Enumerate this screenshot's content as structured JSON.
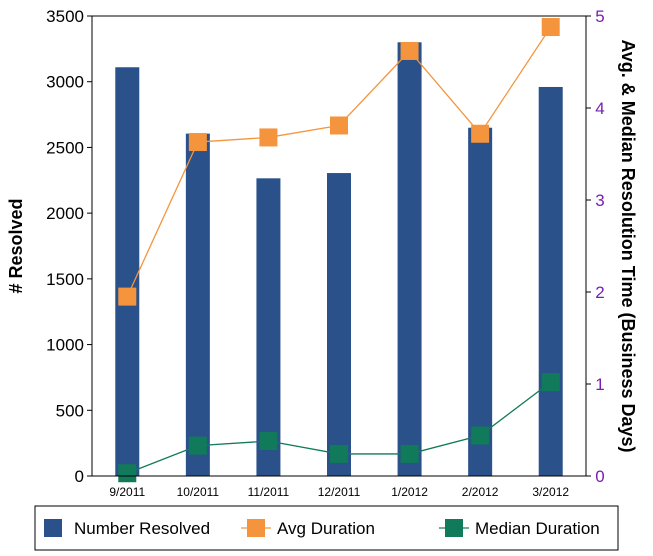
{
  "chart_data": {
    "type": "bar",
    "categories": [
      "9/2011",
      "10/2011",
      "11/2011",
      "12/2011",
      "1/2012",
      "2/2012",
      "3/2012"
    ],
    "series": [
      {
        "name": "Number Resolved",
        "type": "bar",
        "axis": "left",
        "color": "#2a5189",
        "values": [
          3110,
          2605,
          2265,
          2305,
          3300,
          2650,
          2960
        ]
      },
      {
        "name": "Avg Duration",
        "type": "line",
        "axis": "right",
        "color": "#f4953d",
        "values": [
          1.95,
          3.63,
          3.68,
          3.81,
          4.62,
          3.72,
          4.88
        ]
      },
      {
        "name": "Median Duration",
        "type": "line",
        "axis": "right",
        "color": "#117a5a",
        "values": [
          0.03,
          0.33,
          0.38,
          0.24,
          0.24,
          0.44,
          1.02
        ]
      }
    ],
    "ylabel": "# Resolved",
    "y2label": "Avg. & Median Resolution Time (Business Days)",
    "ylim": [
      0,
      3500
    ],
    "y2lim": [
      0,
      5
    ],
    "yticks": [
      "0",
      "500",
      "1000",
      "1500",
      "2000",
      "2500",
      "3000",
      "3500"
    ],
    "y2ticks": [
      "0",
      "1",
      "2",
      "3",
      "4",
      "5"
    ],
    "grid": false,
    "legend_position": "bottom",
    "right_axis_color": "#7a1fb0"
  }
}
